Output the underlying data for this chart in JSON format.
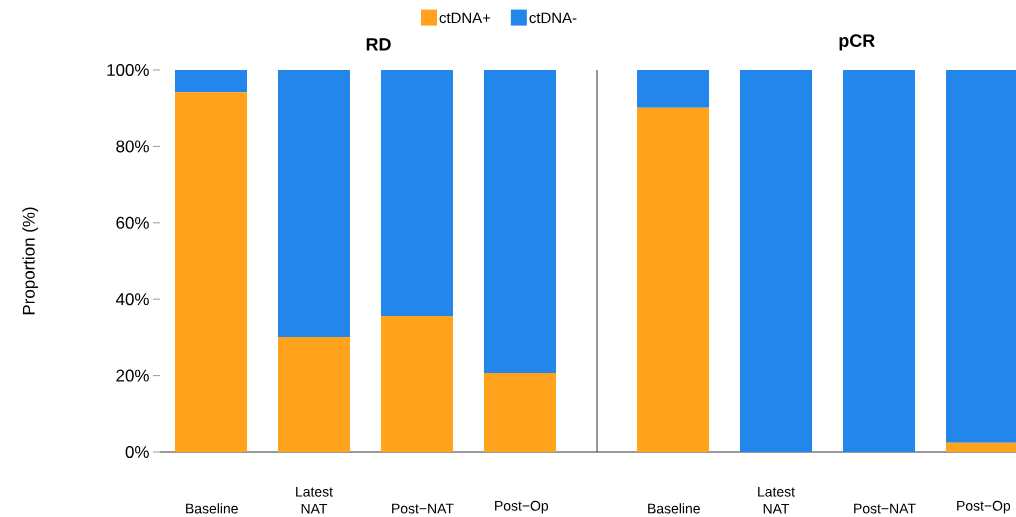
{
  "chart_data": [
    {
      "type": "bar",
      "title": "RD",
      "ylabel": "Proportion (%)",
      "stacked": true,
      "legend": "top",
      "categories": [
        "Baseline",
        "Latest NAT",
        "Post−NAT",
        "Post−Op"
      ],
      "series": [
        {
          "name": "ctDNA+",
          "color": "#ffa21c",
          "values": [
            94.2,
            30.1,
            35.6,
            20.7
          ]
        },
        {
          "name": "ctDNA-",
          "color": "#2386ea",
          "values": [
            5.8,
            69.9,
            64.4,
            79.3
          ]
        }
      ],
      "ylim": [
        0,
        100
      ],
      "yticks": [
        {
          "value": 0,
          "label": "0%"
        },
        {
          "value": 20,
          "label": "20%"
        },
        {
          "value": 40,
          "label": "40%"
        },
        {
          "value": 60,
          "label": "60%"
        },
        {
          "value": 80,
          "label": "80%"
        },
        {
          "value": 100,
          "label": "100%"
        }
      ]
    },
    {
      "type": "bar",
      "title": "pCR",
      "stacked": true,
      "categories": [
        "Baseline",
        "Latest NAT",
        "Post−NAT",
        "Post−Op"
      ],
      "series": [
        {
          "color": "#ffa21c",
          "values": [
            90.1,
            0,
            0,
            2.4
          ]
        },
        {
          "color": "#2386ea",
          "values": [
            9.9,
            100,
            100,
            97.6
          ]
        }
      ],
      "ylim": [
        0,
        100
      ],
      "tick_labels": "x"
    }
  ]
}
